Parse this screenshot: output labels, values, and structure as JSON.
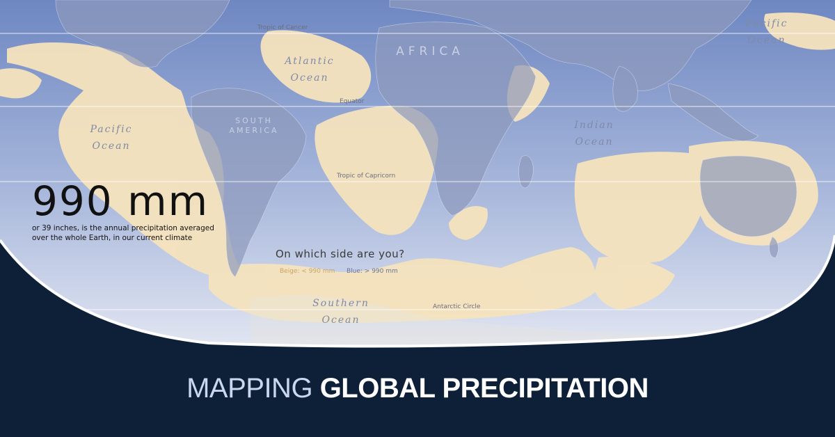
{
  "colors": {
    "dry_beige": "#f7e6c2",
    "wet_blue": "#8a9cc9",
    "background_navy": "#0d2038"
  },
  "latitude_lines": {
    "tropic_of_cancer": "Tropic of Cancer",
    "equator": "Equator",
    "tropic_of_capricorn": "Tropic of Capricorn",
    "antarctic_circle": "Antarctic Circle"
  },
  "oceans": {
    "pacific_east": [
      "Pacific",
      "Ocean"
    ],
    "atlantic": [
      "Atlantic",
      "Ocean"
    ],
    "pacific_west": [
      "Pacific",
      "Ocean"
    ],
    "indian": [
      "Indian",
      "Ocean"
    ],
    "southern": [
      "Southern",
      "Ocean"
    ]
  },
  "continents": {
    "africa": "AFRICA",
    "south_america": [
      "SOUTH",
      "AMERICA"
    ]
  },
  "stat": {
    "value": "990 mm",
    "caption_line1": "or 39 inches, is the annual precipitation averaged",
    "caption_line2": "over the whole Earth, in our current climate"
  },
  "question": "On which side are you?",
  "legend": {
    "beige": "Beige: < 990 mm",
    "blue": "Blue: > 990 mm"
  },
  "title": {
    "light": "MAPPING",
    "bold": "GLOBAL PRECIPITATION"
  }
}
